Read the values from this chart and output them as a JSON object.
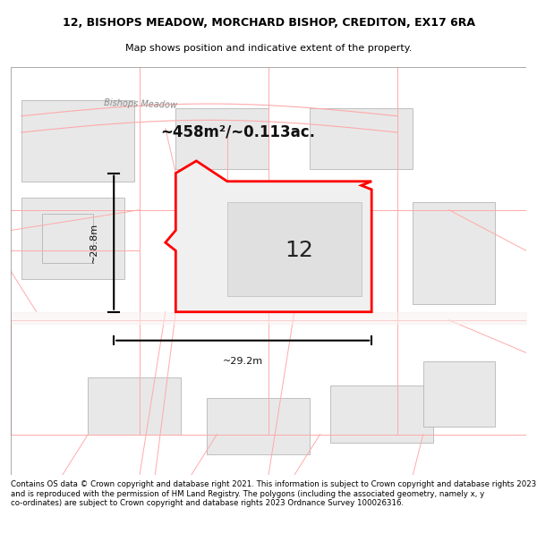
{
  "title_line1": "12, BISHOPS MEADOW, MORCHARD BISHOP, CREDITON, EX17 6RA",
  "title_line2": "Map shows position and indicative extent of the property.",
  "area_label": "~458m²/~0.113ac.",
  "number_label": "12",
  "dim_vertical": "~28.8m",
  "dim_horizontal": "~29.2m",
  "road_label": "Bishops Meadow",
  "footer_text": "Contains OS data © Crown copyright and database right 2021. This information is subject to Crown copyright and database rights 2023 and is reproduced with the permission of HM Land Registry. The polygons (including the associated geometry, namely x, y co-ordinates) are subject to Crown copyright and database rights 2023 Ordnance Survey 100026316.",
  "bg_color": "#ffffff",
  "map_bg": "#f5f5f5",
  "plot_fill": "#e8e8e8",
  "plot_edge": "#ff0000",
  "other_plot_fill": "#d8d8d8",
  "other_plot_edge": "#cccccc",
  "road_lines_color": "#ffaaaa",
  "dim_line_color": "#000000"
}
